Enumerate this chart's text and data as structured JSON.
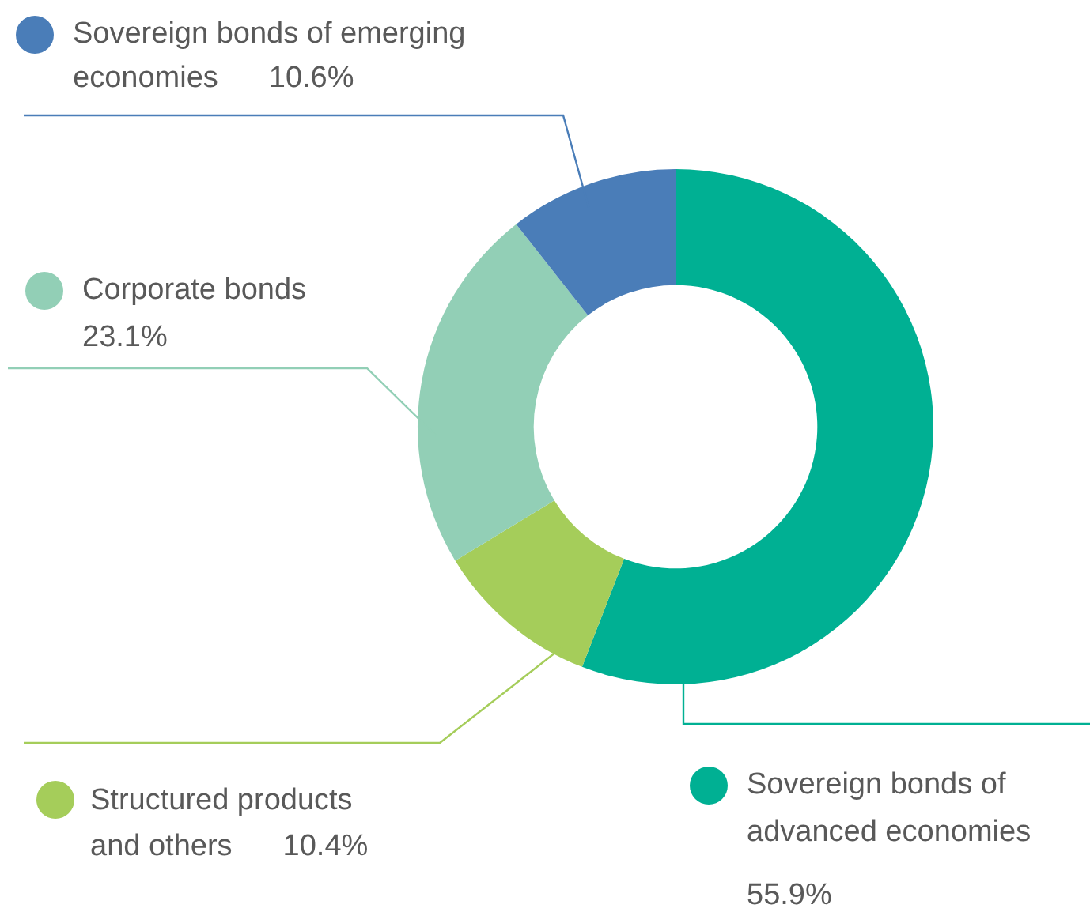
{
  "chart_data": {
    "type": "donut",
    "categories": [
      "Sovereign bonds of advanced economies",
      "Structured products and others",
      "Corporate bonds",
      "Sovereign bonds of emerging economies"
    ],
    "values": [
      55.9,
      10.4,
      23.1,
      10.6
    ],
    "value_labels": [
      "55.9%",
      "10.4%",
      "23.1%",
      "10.6%"
    ],
    "colors": [
      "#00b093",
      "#a5cd5a",
      "#92cfb6",
      "#4a7db8"
    ],
    "legend": "left"
  }
}
